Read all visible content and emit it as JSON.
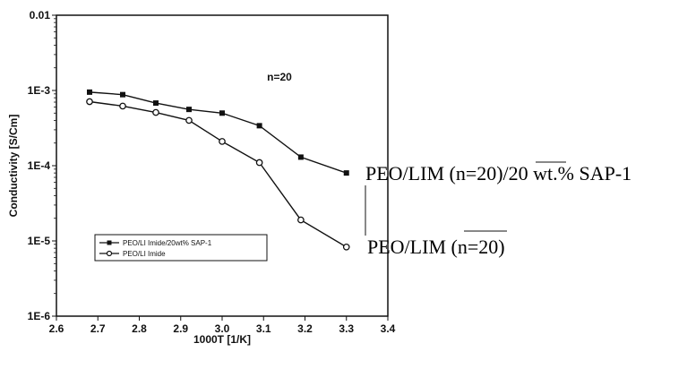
{
  "chart_data": {
    "type": "line",
    "xlabel": "1000T [1/K]",
    "ylabel": "Conductivity [S/Cm]",
    "x_ticks": [
      "2.6",
      "2.7",
      "2.8",
      "2.9",
      "3.0",
      "3.1",
      "3.2",
      "3.3",
      "3.4"
    ],
    "y_ticks": [
      "0.01",
      "1E-3",
      "1E-4",
      "1E-5",
      "1E-6"
    ],
    "xlim": [
      2.6,
      3.4
    ],
    "ylim": [
      1e-06,
      0.01
    ],
    "y_scale": "log",
    "annotation": "n=20",
    "legend_position": "lower-left",
    "series": [
      {
        "name": "PEO/LI Imide/20wt% SAP-1",
        "marker": "filled-square",
        "x": [
          2.68,
          2.76,
          2.84,
          2.92,
          3.0,
          3.09,
          3.19,
          3.3
        ],
        "y": [
          0.00095,
          0.00088,
          0.00068,
          0.00056,
          0.0005,
          0.00034,
          0.00013,
          8e-05
        ]
      },
      {
        "name": "PEO/LI Imide",
        "marker": "open-circle",
        "x": [
          2.68,
          2.76,
          2.84,
          2.92,
          3.0,
          3.09,
          3.19,
          3.3
        ],
        "y": [
          0.00071,
          0.00062,
          0.00051,
          0.0004,
          0.00021,
          0.00011,
          1.9e-05,
          8.3e-06
        ]
      }
    ]
  },
  "series_labels": {
    "top": "PEO/LIM (n=20)/20 wt.% SAP-1",
    "bottom": "PEO/LIM (n=20)"
  }
}
